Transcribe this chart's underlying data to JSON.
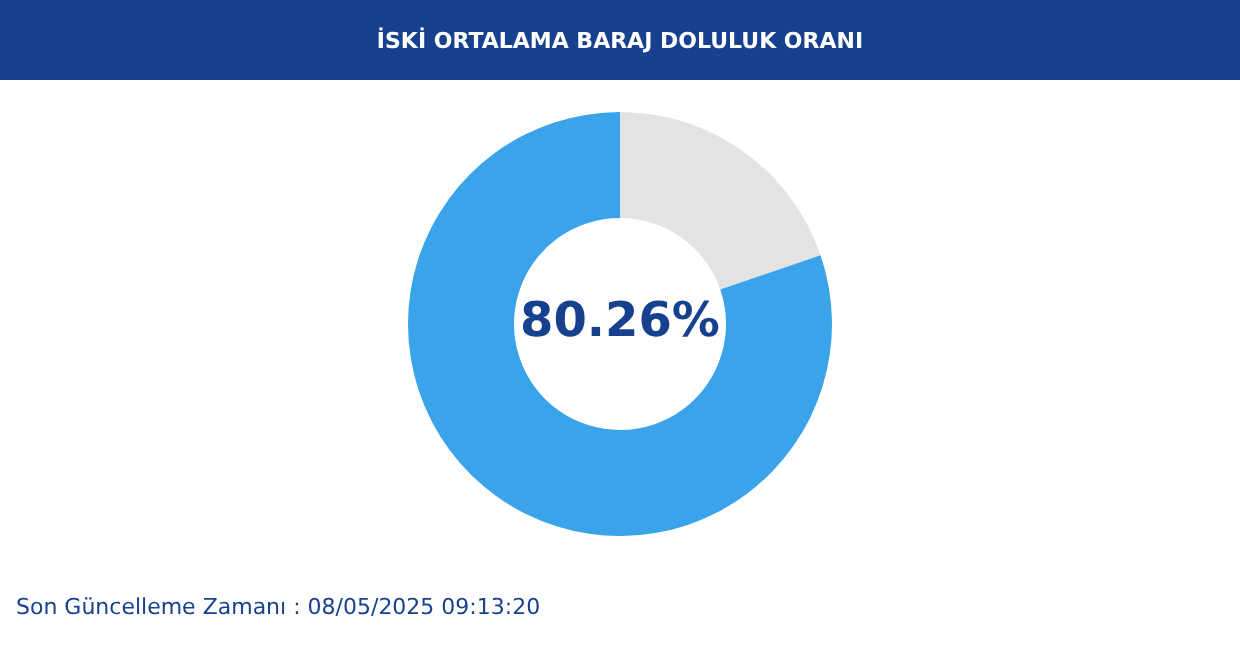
{
  "chart_data": {
    "type": "donut",
    "title": "İSKİ ORTALAMA BARAJ DOLULUK ORANI",
    "categories": [
      null,
      null
    ],
    "values": [
      19.74,
      80.26
    ],
    "colors": [
      "#e3e3e3",
      "#3ba3e9"
    ],
    "value_labels": [
      null,
      "80.26%"
    ],
    "legend": false,
    "annotations": [
      "Son Güncelleme Zamanı : 08/05/2025 09:13:20"
    ]
  }
}
